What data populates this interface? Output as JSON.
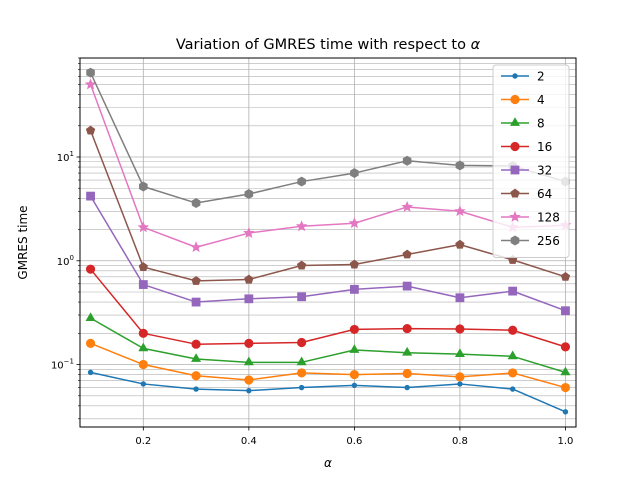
{
  "chart_data": {
    "type": "line",
    "title": "Variation of GMRES time with respect to α",
    "title_main": "Variation of GMRES time with respect to ",
    "title_symbol": "α",
    "xlabel": "α",
    "ylabel": "GMRES time",
    "xlim": [
      0.08,
      1.02
    ],
    "ylim": [
      0.025,
      90
    ],
    "y_scale": "log",
    "grid": true,
    "legend_position": "upper right",
    "x_ticks": [
      {
        "value": 0.2,
        "label": "0.2"
      },
      {
        "value": 0.4,
        "label": "0.4"
      },
      {
        "value": 0.6,
        "label": "0.6"
      },
      {
        "value": 0.8,
        "label": "0.8"
      },
      {
        "value": 1.0,
        "label": "1.0"
      }
    ],
    "y_ticks": [
      {
        "value": 0.1,
        "label": "10⁻¹",
        "base": "10",
        "exp": "−1"
      },
      {
        "value": 1,
        "label": "10⁰",
        "base": "10",
        "exp": "0"
      },
      {
        "value": 10,
        "label": "10¹",
        "base": "10",
        "exp": "1"
      }
    ],
    "x": [
      0.1,
      0.2,
      0.3,
      0.4,
      0.5,
      0.6,
      0.7,
      0.8,
      0.9,
      1.0
    ],
    "series": [
      {
        "name": "2",
        "color": "#1f77b4",
        "marker": "point",
        "values": [
          0.084,
          0.065,
          0.058,
          0.056,
          0.06,
          0.063,
          0.06,
          0.065,
          0.058,
          0.035
        ]
      },
      {
        "name": "4",
        "color": "#ff7f0e",
        "marker": "circle",
        "values": [
          0.16,
          0.1,
          0.078,
          0.071,
          0.083,
          0.08,
          0.082,
          0.076,
          0.083,
          0.06
        ]
      },
      {
        "name": "8",
        "color": "#2ca02c",
        "marker": "triangle",
        "values": [
          0.28,
          0.143,
          0.113,
          0.105,
          0.105,
          0.138,
          0.13,
          0.126,
          0.12,
          0.084
        ]
      },
      {
        "name": "16",
        "color": "#d62728",
        "marker": "circle",
        "values": [
          0.83,
          0.2,
          0.157,
          0.16,
          0.163,
          0.218,
          0.222,
          0.22,
          0.214,
          0.148
        ]
      },
      {
        "name": "32",
        "color": "#9467bd",
        "marker": "square",
        "values": [
          4.2,
          0.59,
          0.4,
          0.43,
          0.45,
          0.53,
          0.57,
          0.44,
          0.51,
          0.33
        ]
      },
      {
        "name": "64",
        "color": "#8c564b",
        "marker": "pentagon",
        "values": [
          18.0,
          0.87,
          0.64,
          0.66,
          0.9,
          0.92,
          1.15,
          1.43,
          1.02,
          0.7
        ]
      },
      {
        "name": "128",
        "color": "#e377c2",
        "marker": "star",
        "values": [
          50.0,
          2.1,
          1.35,
          1.85,
          2.15,
          2.3,
          3.3,
          3.0,
          2.1,
          2.2
        ]
      },
      {
        "name": "256",
        "color": "#7f7f7f",
        "marker": "hexagon",
        "values": [
          65.0,
          5.2,
          3.6,
          4.4,
          5.8,
          7.0,
          9.2,
          8.3,
          8.2,
          5.8
        ]
      }
    ]
  }
}
